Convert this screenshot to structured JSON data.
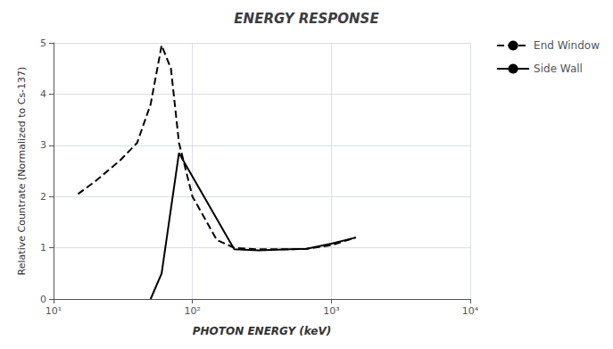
{
  "chart_data": {
    "type": "line",
    "title": "ENERGY RESPONSE",
    "xlabel": "PHOTON ENERGY (keV)",
    "ylabel": "Relative Countrate (Normalized to Cs-137)",
    "log": "x",
    "xlim": [
      10,
      10000
    ],
    "xticks": [
      {
        "value": 10,
        "label": "10¹"
      },
      {
        "value": 100,
        "label": "10²"
      },
      {
        "value": 1000,
        "label": "10³"
      },
      {
        "value": 10000,
        "label": "10⁴"
      }
    ],
    "ylim": [
      0,
      5
    ],
    "yticks": [
      0,
      1,
      2,
      3,
      4,
      5
    ],
    "grid": true,
    "legend": "right",
    "series": [
      {
        "name": "End Window",
        "color": "#000000",
        "line_style": "dashed",
        "x": [
          15,
          20,
          30,
          40,
          50,
          60,
          70,
          80,
          100,
          150,
          200,
          300,
          500,
          662,
          1000,
          1500
        ],
        "values": [
          2.05,
          2.3,
          2.7,
          3.05,
          3.8,
          4.95,
          4.5,
          3.05,
          2.0,
          1.15,
          1.0,
          0.97,
          0.97,
          0.98,
          1.05,
          1.2
        ]
      },
      {
        "name": "Side Wall",
        "color": "#000000",
        "line_style": "solid",
        "x": [
          50,
          60,
          80,
          200,
          300,
          500,
          662,
          1000,
          1500
        ],
        "values": [
          0.0,
          0.5,
          2.85,
          0.97,
          0.95,
          0.97,
          0.98,
          1.08,
          1.2
        ]
      }
    ]
  }
}
